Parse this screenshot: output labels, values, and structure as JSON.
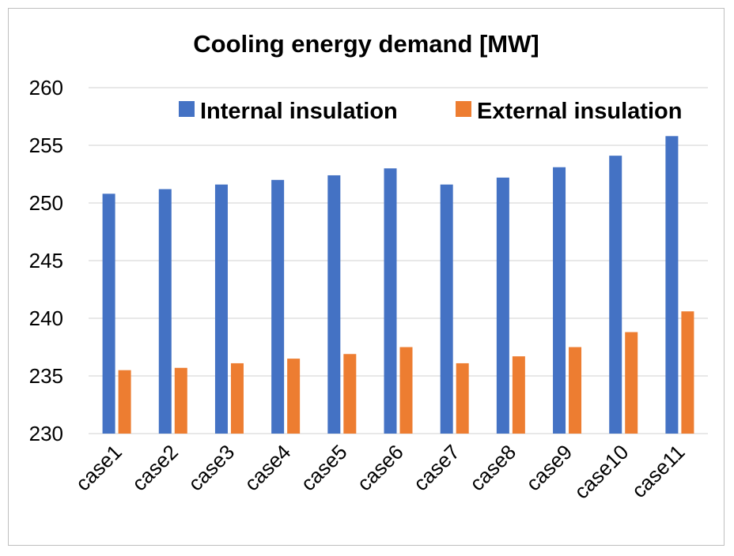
{
  "chart_data": {
    "type": "bar",
    "title": "Cooling energy demand [MW]",
    "xlabel": "",
    "ylabel": "",
    "categories": [
      "case1",
      "case2",
      "case3",
      "case4",
      "case5",
      "case6",
      "case7",
      "case8",
      "case9",
      "case10",
      "case11"
    ],
    "series": [
      {
        "name": "Internal insulation",
        "color": "#4472C4",
        "values": [
          250.8,
          251.2,
          251.6,
          252.0,
          252.4,
          253.0,
          251.6,
          252.2,
          253.1,
          254.1,
          255.8
        ]
      },
      {
        "name": "External insulation",
        "color": "#ED7D31",
        "values": [
          235.5,
          235.7,
          236.1,
          236.5,
          236.9,
          237.5,
          236.1,
          236.7,
          237.5,
          238.8,
          240.6
        ]
      }
    ],
    "ylim": [
      230,
      260
    ],
    "yticks": [
      230,
      235,
      240,
      245,
      250,
      255,
      260
    ],
    "grid": true,
    "legend_position": "top-right"
  }
}
